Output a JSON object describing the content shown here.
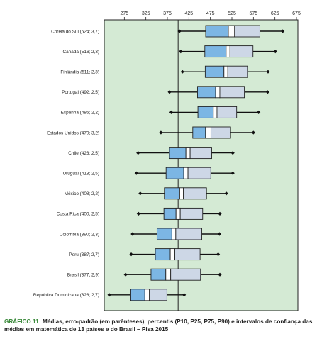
{
  "caption": {
    "number": "GRÁFICO 11",
    "text": "Médias, erro-padrão (em parênteses), percentis (P10, P25, P75, P90) e intervalos de confiança das médias em matemática de 13 países e do Brasil – Pisa 2015"
  },
  "colors": {
    "background": "#d4ead4",
    "box_low": "#7cb6e4",
    "box_high": "#cdd7e6",
    "accent": "#3c8a3c"
  },
  "chart_data": {
    "type": "boxplot",
    "title": "",
    "xlim": [
      225,
      675
    ],
    "xticks": [
      275,
      325,
      375,
      425,
      475,
      525,
      575,
      625,
      675
    ],
    "reference_line": 400,
    "legend": "none",
    "grid": false,
    "rows": [
      {
        "label": "Coreia do Sul (524; 3,7)",
        "country": "Coreia do Sul",
        "mean": 524,
        "se": 3.7,
        "p10": 403,
        "p25": 464,
        "p75": 590,
        "p90": 643
      },
      {
        "label": "Canadá (516; 2,3)",
        "country": "Canadá",
        "mean": 516,
        "se": 2.3,
        "p10": 406,
        "p25": 462,
        "p75": 574,
        "p90": 626
      },
      {
        "label": "Finlândia (511; 2,3)",
        "country": "Finlândia",
        "mean": 511,
        "se": 2.3,
        "p10": 410,
        "p25": 463,
        "p75": 561,
        "p90": 609
      },
      {
        "label": "Portugal (492; 2,5)",
        "country": "Portugal",
        "mean": 492,
        "se": 2.5,
        "p10": 380,
        "p25": 445,
        "p75": 554,
        "p90": 608
      },
      {
        "label": "Espanha (486; 2,2)",
        "country": "Espanha",
        "mean": 486,
        "se": 2.2,
        "p10": 384,
        "p25": 446,
        "p75": 536,
        "p90": 587
      },
      {
        "label": "Estados Unidos (470; 3,2)",
        "country": "Estados Unidos",
        "mean": 470,
        "se": 3.2,
        "p10": 360,
        "p25": 434,
        "p75": 522,
        "p90": 575
      },
      {
        "label": "Chile (423; 2,5)",
        "country": "Chile",
        "mean": 423,
        "se": 2.5,
        "p10": 307,
        "p25": 380,
        "p75": 478,
        "p90": 527
      },
      {
        "label": "Uruguai (418; 2,5)",
        "country": "Uruguai",
        "mean": 418,
        "se": 2.5,
        "p10": 303,
        "p25": 372,
        "p75": 476,
        "p90": 527
      },
      {
        "label": "México (408; 2,2)",
        "country": "México",
        "mean": 408,
        "se": 2.2,
        "p10": 312,
        "p25": 368,
        "p75": 466,
        "p90": 512
      },
      {
        "label": "Costa Rica (400; 2,5)",
        "country": "Costa Rica",
        "mean": 400,
        "se": 2.5,
        "p10": 308,
        "p25": 367,
        "p75": 457,
        "p90": 497
      },
      {
        "label": "Colômbia (390; 2,3)",
        "country": "Colômbia",
        "mean": 390,
        "se": 2.3,
        "p10": 294,
        "p25": 351,
        "p75": 455,
        "p90": 496
      },
      {
        "label": "Peru (387; 2,7)",
        "country": "Peru",
        "mean": 387,
        "se": 2.7,
        "p10": 291,
        "p25": 347,
        "p75": 451,
        "p90": 493
      },
      {
        "label": "Brasil (377; 2,9)",
        "country": "Brasil",
        "mean": 377,
        "se": 2.9,
        "p10": 278,
        "p25": 337,
        "p75": 452,
        "p90": 497
      },
      {
        "label": "República Dominicana (328; 2,7)",
        "country": "República Dominicana",
        "mean": 328,
        "se": 2.7,
        "p10": 240,
        "p25": 290,
        "p75": 374,
        "p90": 414
      }
    ]
  }
}
